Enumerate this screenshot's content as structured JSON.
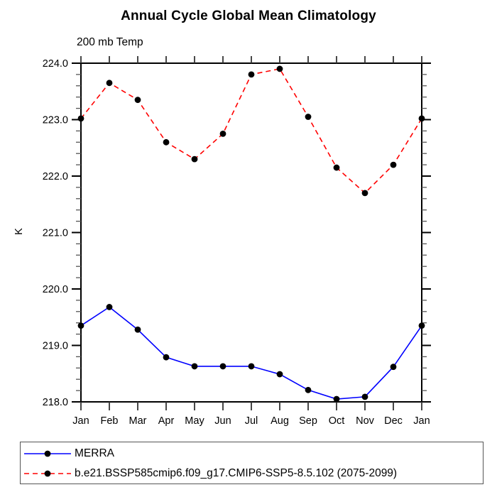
{
  "chart_data": {
    "type": "line",
    "title": "Annual Cycle Global Mean Climatology",
    "subtitle": "200 mb Temp",
    "ylabel": "K",
    "categories": [
      "Jan",
      "Feb",
      "Mar",
      "Apr",
      "May",
      "Jun",
      "Jul",
      "Aug",
      "Sep",
      "Oct",
      "Nov",
      "Dec",
      "Jan"
    ],
    "ylim": [
      218.0,
      224.0
    ],
    "y_major_step": 1.0,
    "y_minor_step": 0.2,
    "y_tick_labels": [
      "218.0",
      "219.0",
      "220.0",
      "221.0",
      "222.0",
      "223.0",
      "224.0"
    ],
    "grid": false,
    "legend_position": "bottom-left-box",
    "axis_color": "#000000",
    "background_color": "#ffffff",
    "series": [
      {
        "name": "MERRA",
        "color": "#0000ff",
        "line_style": "solid",
        "marker": "filled-circle",
        "marker_color": "#000000",
        "values": [
          219.35,
          219.68,
          219.28,
          218.79,
          218.63,
          218.63,
          218.63,
          218.49,
          218.21,
          218.05,
          218.09,
          218.62,
          219.35
        ]
      },
      {
        "name": "b.e21.BSSP585cmip6.f09_g17.CMIP6-SSP5-8.5.102 (2075-2099)",
        "color": "#ff0000",
        "line_style": "dashed",
        "marker": "filled-circle",
        "marker_color": "#000000",
        "values": [
          223.02,
          223.65,
          223.35,
          222.6,
          222.3,
          222.75,
          223.8,
          223.9,
          223.05,
          222.15,
          221.7,
          222.2,
          223.02
        ]
      }
    ]
  }
}
